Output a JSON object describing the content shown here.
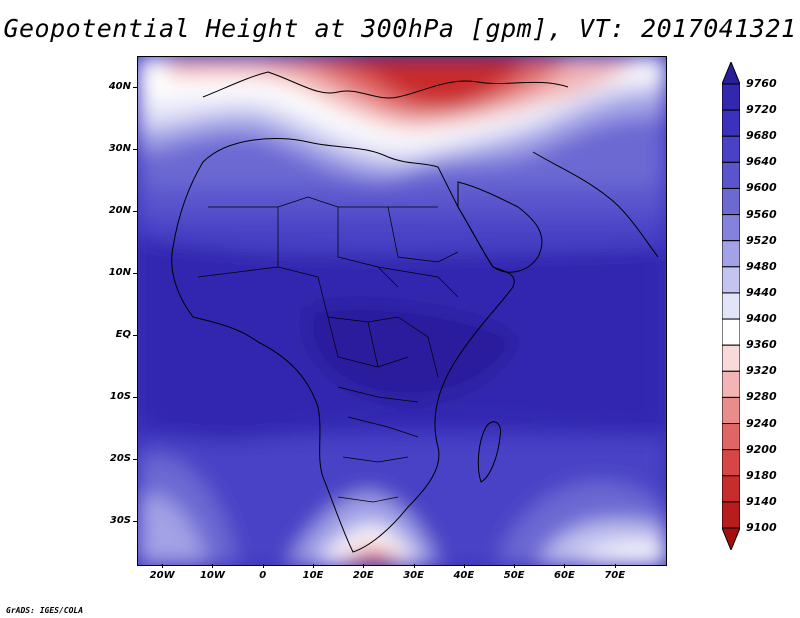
{
  "title": "Geopotential Height at 300hPa [gpm], VT: 2017041321",
  "footer": "GrADS: IGES/COLA",
  "map": {
    "lon_range": [
      -25,
      80
    ],
    "lat_range": [
      -37,
      45
    ],
    "lat_ticks": [
      {
        "value": 40,
        "label": "40N"
      },
      {
        "value": 30,
        "label": "30N"
      },
      {
        "value": 20,
        "label": "20N"
      },
      {
        "value": 10,
        "label": "10N"
      },
      {
        "value": 0,
        "label": "EQ"
      },
      {
        "value": -10,
        "label": "10S"
      },
      {
        "value": -20,
        "label": "20S"
      },
      {
        "value": -30,
        "label": "30S"
      }
    ],
    "lon_ticks": [
      {
        "value": -20,
        "label": "20W"
      },
      {
        "value": -10,
        "label": "10W"
      },
      {
        "value": 0,
        "label": "0"
      },
      {
        "value": 10,
        "label": "10E"
      },
      {
        "value": 20,
        "label": "20E"
      },
      {
        "value": 30,
        "label": "30E"
      },
      {
        "value": 40,
        "label": "40E"
      },
      {
        "value": 50,
        "label": "50E"
      },
      {
        "value": 60,
        "label": "60E"
      },
      {
        "value": 70,
        "label": "70E"
      }
    ]
  },
  "colorbar": {
    "levels": [
      "9760",
      "9720",
      "9680",
      "9640",
      "9600",
      "9560",
      "9520",
      "9480",
      "9440",
      "9400",
      "9360",
      "9320",
      "9280",
      "9240",
      "9200",
      "9180",
      "9140",
      "9100"
    ],
    "colors_top_to_bottom": [
      "#2a1d9c",
      "#3327b0",
      "#3b31bd",
      "#4a42c6",
      "#5a54cd",
      "#6c69d3",
      "#8582dc",
      "#a3a2e6",
      "#c4c4f0",
      "#e4e4f8",
      "#ffffff",
      "#f9dada",
      "#f2b4b4",
      "#ea8c8c",
      "#e06666",
      "#d64646",
      "#c92c2c",
      "#b81c1c",
      "#a50f0f"
    ]
  }
}
